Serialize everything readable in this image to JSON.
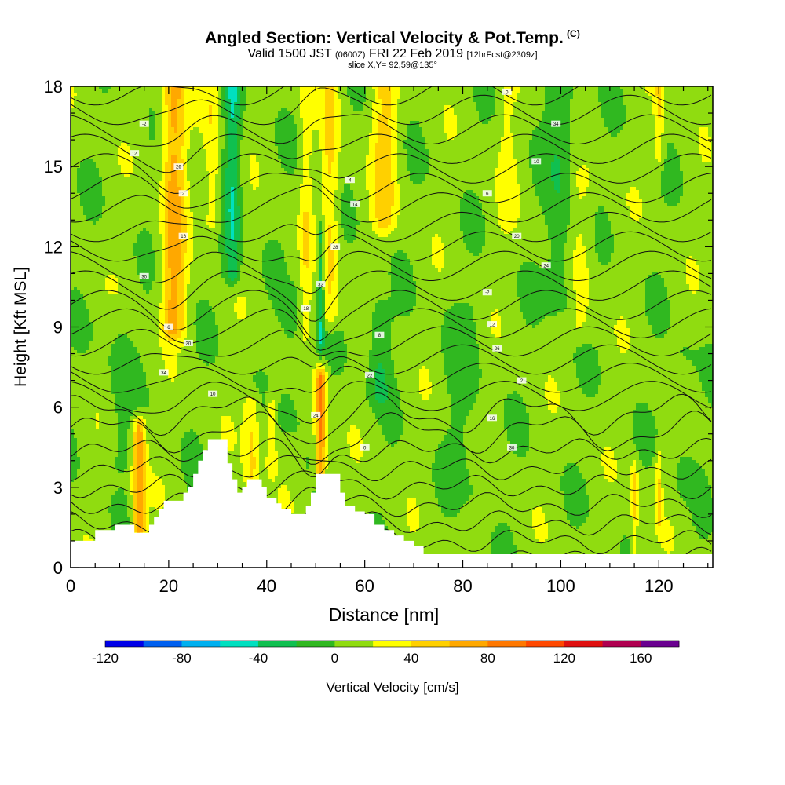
{
  "titles": {
    "main": "Angled Section: Vertical Velocity & Pot.Temp.",
    "main_tag": "(C)",
    "valid_a": "Valid 1500 JST",
    "valid_b": "(0600Z)",
    "valid_c": "FRI 22 Feb 2019",
    "valid_d": "[12hrFcst@2309z]",
    "slice": "slice X,Y= 92,59@135°"
  },
  "chart_data": {
    "type": "heatmap",
    "title": "Angled Section: Vertical Velocity & Pot.Temp.",
    "xlabel": "Distance [nm]",
    "ylabel": "Height [Kft MSL]",
    "xlim": [
      0,
      131
    ],
    "ylim": [
      0,
      18
    ],
    "x_ticks": [
      "0",
      "20",
      "40",
      "60",
      "80",
      "100",
      "120"
    ],
    "y_ticks": [
      "0",
      "3",
      "6",
      "9",
      "12",
      "15",
      "18"
    ],
    "field": "Vertical Velocity [cm/s]",
    "background_value": 8,
    "updrafts": [
      {
        "x": 21,
        "ybot": 9.0,
        "ytop": 18.0,
        "w": 2.3,
        "v": 60
      },
      {
        "x": 14,
        "ybot": 1.4,
        "ytop": 5.2,
        "w": 1.3,
        "v": 65
      },
      {
        "x": 51,
        "ybot": 3.7,
        "ytop": 7.0,
        "w": 1.1,
        "v": 80
      },
      {
        "x": 53,
        "ybot": 9.5,
        "ytop": 18.0,
        "w": 1.6,
        "v": 35
      },
      {
        "x": 48,
        "ybot": 9.0,
        "ytop": 18.0,
        "w": 1.2,
        "v": 25
      },
      {
        "x": 64,
        "ybot": 13.0,
        "ytop": 18.0,
        "w": 2.5,
        "v": 38
      },
      {
        "x": 29,
        "ybot": 13.0,
        "ytop": 18.0,
        "w": 1.8,
        "v": 28
      },
      {
        "x": 37,
        "ybot": 3.4,
        "ytop": 6.0,
        "w": 1.6,
        "v": 35
      },
      {
        "x": 41,
        "ybot": 4.0,
        "ytop": 6.0,
        "w": 1.0,
        "v": 30
      },
      {
        "x": 115,
        "ybot": 0.6,
        "ytop": 3.5,
        "w": 0.7,
        "v": 35
      },
      {
        "x": 120,
        "ybot": 2.0,
        "ytop": 4.0,
        "w": 0.7,
        "v": 35
      },
      {
        "x": 120,
        "ybot": 15.5,
        "ytop": 18.0,
        "w": 1.0,
        "v": 30
      },
      {
        "x": 104,
        "ybot": 9.0,
        "ytop": 14.5,
        "w": 2.5,
        "v": 18
      },
      {
        "x": 89,
        "ybot": 13.0,
        "ytop": 18.0,
        "w": 2.0,
        "v": 15
      }
    ],
    "downdrafts": [
      {
        "x": 33,
        "ybot": 11.0,
        "ytop": 18.0,
        "w": 1.8,
        "v": -45
      },
      {
        "x": 51,
        "ybot": 8.5,
        "ytop": 12.5,
        "w": 0.7,
        "v": -45
      },
      {
        "x": 63,
        "ybot": 6.5,
        "ytop": 9.5,
        "w": 2.2,
        "v": -28
      },
      {
        "x": 100,
        "ybot": 10.0,
        "ytop": 18.0,
        "w": 3.0,
        "v": -25
      },
      {
        "x": 45,
        "ybot": 5.5,
        "ytop": 10.0,
        "w": 2.5,
        "v": -15
      },
      {
        "x": 80,
        "ybot": 3.0,
        "ytop": 9.5,
        "w": 4.0,
        "v": -12
      },
      {
        "x": 10,
        "ybot": 4.0,
        "ytop": 9.5,
        "w": 3.0,
        "v": -12
      },
      {
        "x": 125,
        "ybot": 3.0,
        "ytop": 8.0,
        "w": 3.0,
        "v": -10
      }
    ],
    "terrain": [
      [
        0,
        1.0
      ],
      [
        4,
        1.0
      ],
      [
        5,
        1.4
      ],
      [
        8,
        1.4
      ],
      [
        9,
        1.6
      ],
      [
        12,
        1.6
      ],
      [
        13,
        1.3
      ],
      [
        15,
        1.3
      ],
      [
        16,
        1.6
      ],
      [
        17,
        1.9
      ],
      [
        18,
        2.2
      ],
      [
        19,
        2.5
      ],
      [
        22,
        2.5
      ],
      [
        23,
        2.8
      ],
      [
        24,
        3.0
      ],
      [
        25,
        3.5
      ],
      [
        26,
        4.0
      ],
      [
        27,
        4.4
      ],
      [
        28,
        4.8
      ],
      [
        31,
        4.8
      ],
      [
        32,
        3.9
      ],
      [
        33,
        3.3
      ],
      [
        34,
        2.8
      ],
      [
        35,
        3.0
      ],
      [
        36,
        3.3
      ],
      [
        38,
        3.3
      ],
      [
        39,
        3.0
      ],
      [
        40,
        2.6
      ],
      [
        42,
        2.4
      ],
      [
        43,
        2.2
      ],
      [
        45,
        2.0
      ],
      [
        47,
        2.0
      ],
      [
        48,
        2.3
      ],
      [
        49,
        2.8
      ],
      [
        50,
        3.5
      ],
      [
        54,
        3.5
      ],
      [
        55,
        2.8
      ],
      [
        56,
        2.3
      ],
      [
        58,
        2.1
      ],
      [
        60,
        2.0
      ],
      [
        62,
        1.6
      ],
      [
        64,
        1.4
      ],
      [
        66,
        1.2
      ],
      [
        68,
        1.0
      ],
      [
        70,
        0.8
      ],
      [
        72,
        0.5
      ],
      [
        131,
        0.5
      ]
    ],
    "pot_temp_label_values": [
      "-2",
      "0",
      "2",
      "4",
      "6",
      "8",
      "10",
      "12",
      "14",
      "16",
      "18",
      "20",
      "22",
      "24",
      "26",
      "28",
      "30",
      "32",
      "34"
    ],
    "legend": {
      "label": "Vertical Velocity [cm/s]",
      "tick_labels": [
        "-120",
        "-80",
        "-40",
        "0",
        "40",
        "80",
        "120",
        "160"
      ],
      "range": [
        -120,
        180
      ],
      "colors": [
        "#0000e8",
        "#0060f0",
        "#00b0f0",
        "#00e0c0",
        "#10c050",
        "#30b820",
        "#90dc10",
        "#ffff00",
        "#ffd000",
        "#ffa800",
        "#ff7800",
        "#ff4800",
        "#e01010",
        "#b00050",
        "#6a0090"
      ]
    }
  }
}
